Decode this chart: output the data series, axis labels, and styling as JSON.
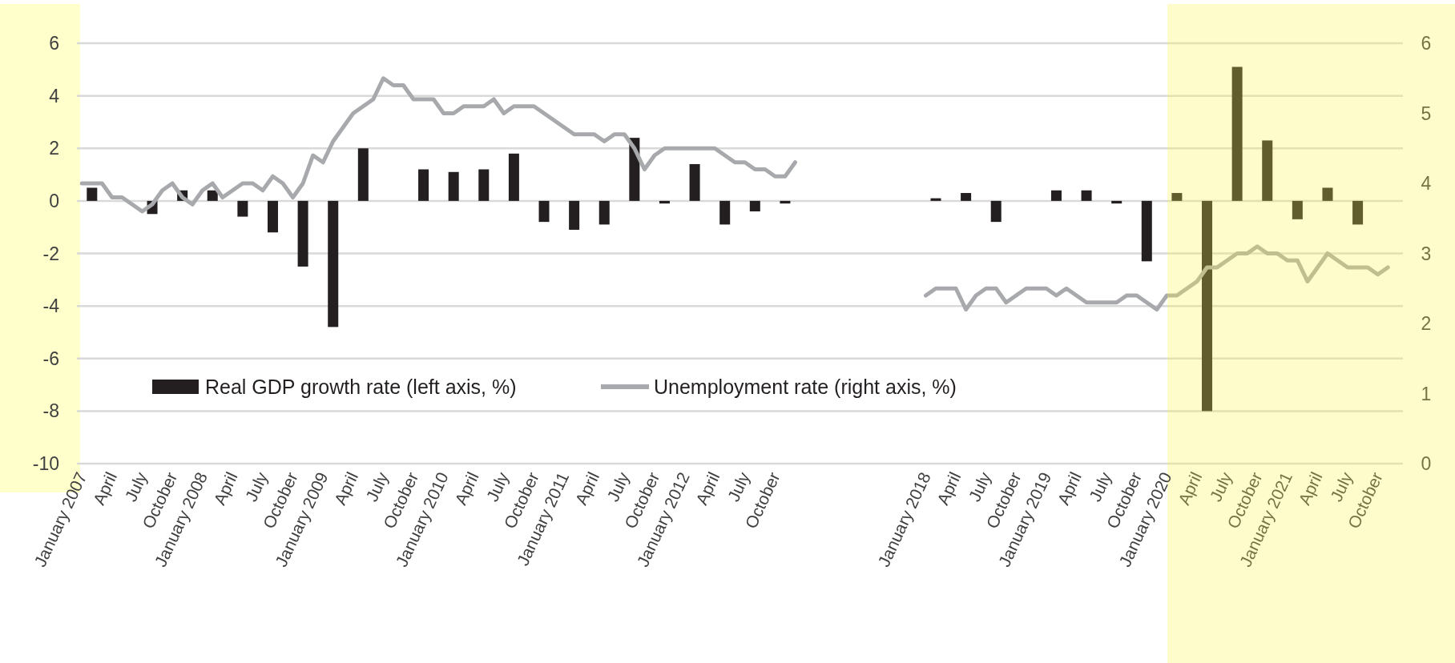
{
  "chart_data": {
    "type": "bar",
    "categories": [
      "January 2007",
      null,
      null,
      "April",
      null,
      null,
      "July",
      null,
      null,
      "October",
      null,
      null,
      "January 2008",
      null,
      null,
      "April",
      null,
      null,
      "July",
      null,
      null,
      "October",
      null,
      null,
      "January 2009",
      null,
      null,
      "April",
      null,
      null,
      "July",
      null,
      null,
      "October",
      null,
      null,
      "January 2010",
      null,
      null,
      "April",
      null,
      null,
      "July",
      null,
      null,
      "October",
      null,
      null,
      "January 2011",
      null,
      null,
      "April",
      null,
      null,
      "July",
      null,
      null,
      "October",
      null,
      null,
      "January 2012",
      null,
      null,
      "April",
      null,
      null,
      "July",
      null,
      null,
      "October",
      null,
      null,
      null,
      null,
      null,
      null,
      null,
      null,
      null,
      null,
      null,
      null,
      null,
      null,
      "January 2018",
      null,
      null,
      "April",
      null,
      null,
      "July",
      null,
      null,
      "October",
      null,
      null,
      "January 2019",
      null,
      null,
      "April",
      null,
      null,
      "July",
      null,
      null,
      "October",
      null,
      null,
      "January 2020",
      null,
      null,
      "April",
      null,
      null,
      "July",
      null,
      null,
      "October",
      null,
      null,
      "January 2021",
      null,
      null,
      "April",
      null,
      null,
      "July",
      null,
      null,
      "October",
      null,
      null
    ],
    "series": [
      {
        "name": "Real GDP growth rate (left axis, %)",
        "color": "#231f20",
        "values": [
          null,
          0.5,
          null,
          null,
          null,
          null,
          null,
          -0.5,
          null,
          null,
          0.4,
          null,
          null,
          0.4,
          null,
          null,
          -0.6,
          null,
          null,
          -1.2,
          null,
          null,
          -2.5,
          null,
          null,
          -4.8,
          null,
          null,
          2.0,
          null,
          null,
          null,
          null,
          null,
          1.2,
          null,
          null,
          1.1,
          null,
          null,
          1.2,
          null,
          null,
          1.8,
          null,
          null,
          -0.8,
          null,
          null,
          -1.1,
          null,
          null,
          -0.9,
          null,
          null,
          2.4,
          null,
          null,
          -0.1,
          null,
          null,
          1.4,
          null,
          null,
          -0.9,
          null,
          null,
          -0.4,
          null,
          null,
          -0.1,
          null,
          null,
          null,
          null,
          null,
          null,
          null,
          null,
          null,
          null,
          null,
          null,
          null,
          null,
          0.1,
          null,
          null,
          0.3,
          null,
          null,
          -0.8,
          null,
          null,
          null,
          null,
          null,
          0.4,
          null,
          null,
          0.4,
          null,
          null,
          -0.1,
          null,
          null,
          -2.3,
          null,
          null,
          0.3,
          null,
          null,
          -8.0,
          null,
          null,
          5.1,
          null,
          null,
          2.3,
          null,
          null,
          -0.7,
          null,
          null,
          0.5,
          null,
          null,
          -0.9,
          null,
          null,
          null,
          null
        ]
      },
      {
        "name": "Unemployment rate (right axis, %)",
        "type": "line",
        "axis": "y2",
        "color": "#a7a9ac",
        "values": [
          4.0,
          4.0,
          4.0,
          3.8,
          3.8,
          3.7,
          3.6,
          3.7,
          3.9,
          4.0,
          3.8,
          3.7,
          3.9,
          4.0,
          3.8,
          3.9,
          4.0,
          4.0,
          3.9,
          4.1,
          4.0,
          3.8,
          4.0,
          4.4,
          4.3,
          4.6,
          4.8,
          5.0,
          5.1,
          5.2,
          5.5,
          5.4,
          5.4,
          5.2,
          5.2,
          5.2,
          5.0,
          5.0,
          5.1,
          5.1,
          5.1,
          5.2,
          5.0,
          5.1,
          5.1,
          5.1,
          5.0,
          4.9,
          4.8,
          4.7,
          4.7,
          4.7,
          4.6,
          4.7,
          4.7,
          4.5,
          4.2,
          4.4,
          4.5,
          4.5,
          4.5,
          4.5,
          4.5,
          4.5,
          4.4,
          4.3,
          4.3,
          4.2,
          4.2,
          4.1,
          4.1,
          4.3,
          null,
          null,
          null,
          null,
          null,
          null,
          null,
          null,
          null,
          null,
          null,
          null,
          2.4,
          2.5,
          2.5,
          2.5,
          2.2,
          2.4,
          2.5,
          2.5,
          2.3,
          2.4,
          2.5,
          2.5,
          2.5,
          2.4,
          2.5,
          2.4,
          2.3,
          2.3,
          2.3,
          2.3,
          2.4,
          2.4,
          2.3,
          2.2,
          2.4,
          2.4,
          2.5,
          2.6,
          2.8,
          2.8,
          2.9,
          3.0,
          3.0,
          3.1,
          3.0,
          3.0,
          2.9,
          2.9,
          2.6,
          2.8,
          3.0,
          2.9,
          2.8,
          2.8,
          2.8,
          2.7,
          2.8,
          null
        ]
      }
    ],
    "ylim": [
      -10,
      6
    ],
    "yticks": [
      -10,
      -8,
      -6,
      -4,
      -2,
      0,
      2,
      4,
      6
    ],
    "y2lim": [
      0,
      6
    ],
    "y2ticks": [
      0,
      1,
      2,
      3,
      4,
      5,
      6
    ],
    "grid": "y",
    "legend": "bottom"
  }
}
